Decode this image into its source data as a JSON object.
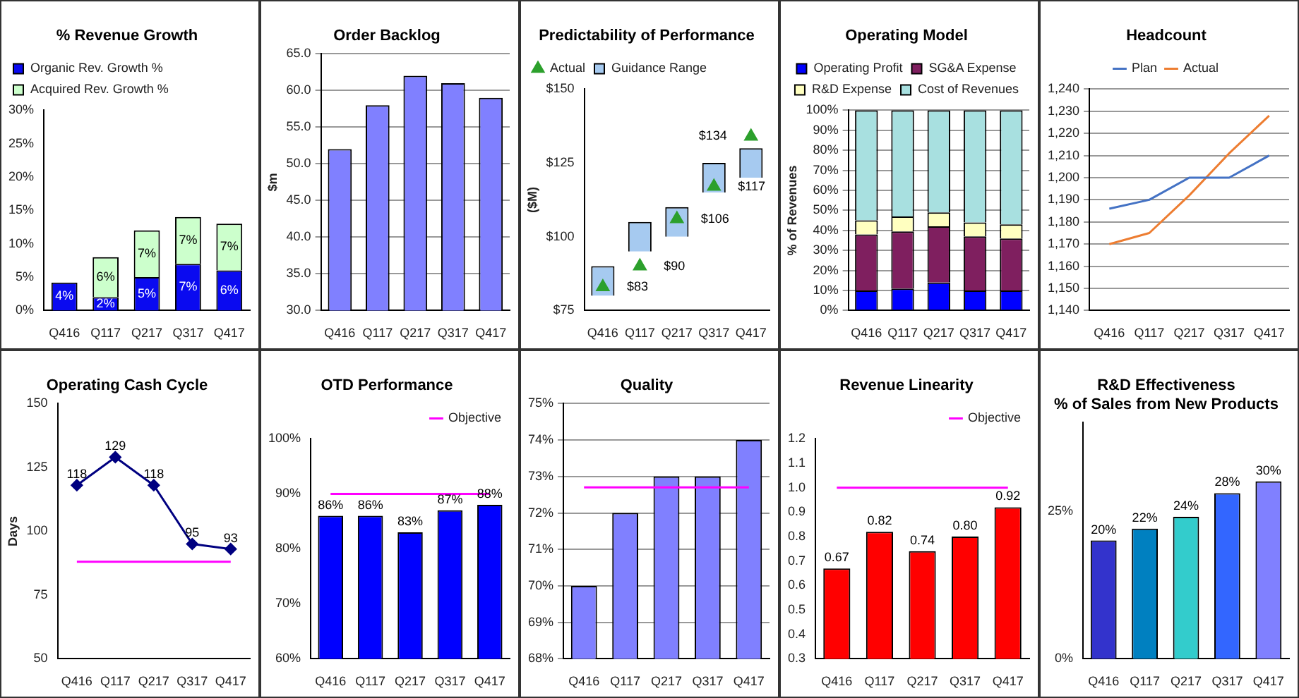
{
  "chart_data": [
    {
      "type": "bar",
      "title": "% Revenue Growth",
      "categories": [
        "Q416",
        "Q117",
        "Q217",
        "Q317",
        "Q417"
      ],
      "stacked": true,
      "legend": "top left",
      "ylim": [
        0,
        30
      ],
      "yticks": [
        {
          "value": 0,
          "label": "0%"
        },
        {
          "value": 5,
          "label": "5%"
        },
        {
          "value": 10,
          "label": "10%"
        },
        {
          "value": 15,
          "label": "15%"
        },
        {
          "value": 20,
          "label": "20%"
        },
        {
          "value": 25,
          "label": "25%"
        },
        {
          "value": 30,
          "label": "30%"
        }
      ],
      "series": [
        {
          "name": "Organic Rev. Growth %",
          "color": "#0a0af0",
          "values": [
            4.2,
            2,
            5,
            7,
            6
          ],
          "value_labels": [
            "4%",
            "2%",
            "5%",
            "7%",
            "6%"
          ]
        },
        {
          "name": "Acquired Rev. Growth %",
          "color": "#ccffcc",
          "values": [
            null,
            6,
            7,
            7,
            7
          ],
          "value_labels": [
            null,
            "6%",
            "7%",
            "7%",
            "7%"
          ]
        }
      ]
    },
    {
      "type": "bar",
      "title": "Order Backlog",
      "ylabel": "$m",
      "categories": [
        "Q416",
        "Q117",
        "Q217",
        "Q317",
        "Q417"
      ],
      "values": [
        52,
        58,
        62,
        61,
        59
      ],
      "color": "#8080ff",
      "grid": "y",
      "ylim": [
        30,
        65
      ],
      "yticks": [
        {
          "value": 30,
          "label": "30.0"
        },
        {
          "value": 35,
          "label": "35.0"
        },
        {
          "value": 40,
          "label": "40.0"
        },
        {
          "value": 45,
          "label": "45.0"
        },
        {
          "value": 50,
          "label": "50.0"
        },
        {
          "value": 55,
          "label": "55.0"
        },
        {
          "value": 60,
          "label": "60.0"
        },
        {
          "value": 65,
          "label": "65.0"
        }
      ]
    },
    {
      "type": "bar",
      "title": "Predictability of Performance",
      "ylabel": "($M)",
      "categories": [
        "Q416",
        "Q117",
        "Q217",
        "Q317",
        "Q417"
      ],
      "legend": "top left",
      "ylim": [
        75,
        150
      ],
      "yticks": [
        {
          "value": 75,
          "label": "$75"
        },
        {
          "value": 100,
          "label": "$100"
        },
        {
          "value": 125,
          "label": "$125"
        },
        {
          "value": 150,
          "label": "$150"
        }
      ],
      "series": [
        {
          "name": "Guidance Range",
          "type": "bar",
          "color": "#a6caf0",
          "base": [
            80,
            95,
            100,
            115,
            120
          ],
          "values": [
            10,
            10,
            10,
            10,
            10
          ]
        },
        {
          "name": "Actual",
          "type": "scatter",
          "marker": "triangle",
          "color": "#2ca02c",
          "x": [
            "Q416",
            "Q117",
            "Q217",
            "Q317",
            "Q417"
          ],
          "values": [
            83,
            90,
            106,
            117,
            134
          ],
          "value_labels": [
            "$83",
            "$90",
            "$106",
            "$117",
            "$134"
          ]
        }
      ]
    },
    {
      "type": "bar",
      "title": "Operating Model",
      "ylabel": "% of Revenues",
      "categories": [
        "Q416",
        "Q117",
        "Q217",
        "Q317",
        "Q417"
      ],
      "stacked": true,
      "legend": "top",
      "grid": "y",
      "ylim": [
        0,
        100
      ],
      "yticks": [
        {
          "value": 0,
          "label": "0%"
        },
        {
          "value": 10,
          "label": "10%"
        },
        {
          "value": 20,
          "label": "20%"
        },
        {
          "value": 30,
          "label": "30%"
        },
        {
          "value": 40,
          "label": "40%"
        },
        {
          "value": 50,
          "label": "50%"
        },
        {
          "value": 60,
          "label": "60%"
        },
        {
          "value": 70,
          "label": "70%"
        },
        {
          "value": 80,
          "label": "80%"
        },
        {
          "value": 90,
          "label": "90%"
        },
        {
          "value": 100,
          "label": "100%"
        }
      ],
      "series": [
        {
          "name": "Operating Profit",
          "color": "#0000ff",
          "values": [
            10,
            11,
            14,
            10,
            10
          ]
        },
        {
          "name": "SG&A Expense",
          "color": "#7f1f5f",
          "values": [
            28,
            28.5,
            28,
            27,
            26
          ]
        },
        {
          "name": "R&D Expense",
          "color": "#ffffc0",
          "values": [
            7,
            7.5,
            7,
            7,
            7
          ]
        },
        {
          "name": "Cost of Revenues",
          "color": "#a8e0e0",
          "values": [
            55,
            53,
            51,
            56,
            57
          ]
        }
      ]
    },
    {
      "type": "line",
      "title": "Headcount",
      "categories": [
        "Q416",
        "Q117",
        "Q217",
        "Q317",
        "Q417"
      ],
      "legend": "top",
      "grid": "y",
      "marker": "none",
      "ylim": [
        1140,
        1240
      ],
      "yticks": [
        {
          "value": 1140,
          "label": "1,140"
        },
        {
          "value": 1150,
          "label": "1,150"
        },
        {
          "value": 1160,
          "label": "1,160"
        },
        {
          "value": 1170,
          "label": "1,170"
        },
        {
          "value": 1180,
          "label": "1,180"
        },
        {
          "value": 1190,
          "label": "1,190"
        },
        {
          "value": 1200,
          "label": "1,200"
        },
        {
          "value": 1210,
          "label": "1,210"
        },
        {
          "value": 1220,
          "label": "1,220"
        },
        {
          "value": 1230,
          "label": "1,230"
        },
        {
          "value": 1240,
          "label": "1,240"
        }
      ],
      "series": [
        {
          "name": "Plan",
          "color": "#4472c4",
          "values": [
            1186,
            1190,
            1200,
            1200,
            1210
          ]
        },
        {
          "name": "Actual",
          "color": "#ed7d31",
          "values": [
            1170,
            1175,
            1192,
            1211,
            1228
          ]
        }
      ]
    },
    {
      "type": "line",
      "title": "Operating Cash Cycle",
      "ylabel": "Days",
      "categories": [
        "Q416",
        "Q117",
        "Q217",
        "Q317",
        "Q417"
      ],
      "values": [
        118,
        129,
        118,
        95,
        93
      ],
      "color": "#000080",
      "marker": "diamond",
      "data_labels": true,
      "ylim": [
        50,
        150
      ],
      "yticks": [
        50,
        75,
        100,
        125,
        150
      ],
      "ref_lines": [
        {
          "axis": "y",
          "value": 88,
          "color": "#ff00ff"
        }
      ]
    },
    {
      "type": "bar",
      "title": "OTD Performance",
      "categories": [
        "Q416",
        "Q117",
        "Q217",
        "Q317",
        "Q417"
      ],
      "values": [
        86,
        86,
        83,
        87,
        88
      ],
      "color": "#0000ff",
      "value_labels": [
        "86%",
        "86%",
        "83%",
        "87%",
        "88%"
      ],
      "legend": "top right",
      "ylim": [
        60,
        100
      ],
      "yticks": [
        {
          "value": 60,
          "label": "60%"
        },
        {
          "value": 70,
          "label": "70%"
        },
        {
          "value": 80,
          "label": "80%"
        },
        {
          "value": 90,
          "label": "90%"
        },
        {
          "value": 100,
          "label": "100%"
        }
      ],
      "ref_lines": [
        {
          "axis": "y",
          "value": 90,
          "label": "Objective",
          "color": "#ff00ff"
        }
      ]
    },
    {
      "type": "bar",
      "title": "Quality",
      "categories": [
        "Q416",
        "Q117",
        "Q217",
        "Q317",
        "Q417"
      ],
      "values": [
        70,
        72,
        73,
        73,
        74
      ],
      "color": "#8080ff",
      "grid": "y",
      "ylim": [
        68,
        75
      ],
      "yticks": [
        {
          "value": 68,
          "label": "68%"
        },
        {
          "value": 69,
          "label": "69%"
        },
        {
          "value": 70,
          "label": "70%"
        },
        {
          "value": 71,
          "label": "71%"
        },
        {
          "value": 72,
          "label": "72%"
        },
        {
          "value": 73,
          "label": "73%"
        },
        {
          "value": 74,
          "label": "74%"
        },
        {
          "value": 75,
          "label": "75%"
        }
      ],
      "ref_lines": [
        {
          "axis": "y",
          "value": 72.7,
          "color": "#ff00ff"
        }
      ]
    },
    {
      "type": "bar",
      "title": "Revenue Linearity",
      "categories": [
        "Q416",
        "Q117",
        "Q217",
        "Q317",
        "Q417"
      ],
      "values": [
        0.67,
        0.82,
        0.74,
        0.8,
        0.92
      ],
      "color": "#ff0000",
      "value_labels": [
        "0.67",
        "0.82",
        "0.74",
        "0.80",
        "0.92"
      ],
      "legend": "top right",
      "ylim": [
        0.3,
        1.2
      ],
      "yticks": [
        0.3,
        0.4,
        0.5,
        0.6,
        0.7,
        0.8,
        0.9,
        {
          "value": 1,
          "label": "1.0"
        },
        1.1,
        1.2
      ],
      "ref_lines": [
        {
          "axis": "y",
          "value": 1,
          "label": "Objective",
          "color": "#ff00ff"
        }
      ]
    },
    {
      "type": "bar",
      "title": "R&D Effectiveness",
      "subtitle": "% of Sales from New Products",
      "categories": [
        "Q416",
        "Q117",
        "Q217",
        "Q317",
        "Q417"
      ],
      "values": [
        20,
        22,
        24,
        28,
        30
      ],
      "colors": [
        "#3333cc",
        "#0080c0",
        "#33cccc",
        "#3366ff",
        "#8080ff"
      ],
      "value_labels": [
        "20%",
        "22%",
        "24%",
        "28%",
        "30%"
      ],
      "ylim": [
        0,
        40
      ],
      "yticks": [
        {
          "value": 0,
          "label": "0%"
        },
        {
          "value": 25,
          "label": "25%"
        }
      ]
    }
  ]
}
